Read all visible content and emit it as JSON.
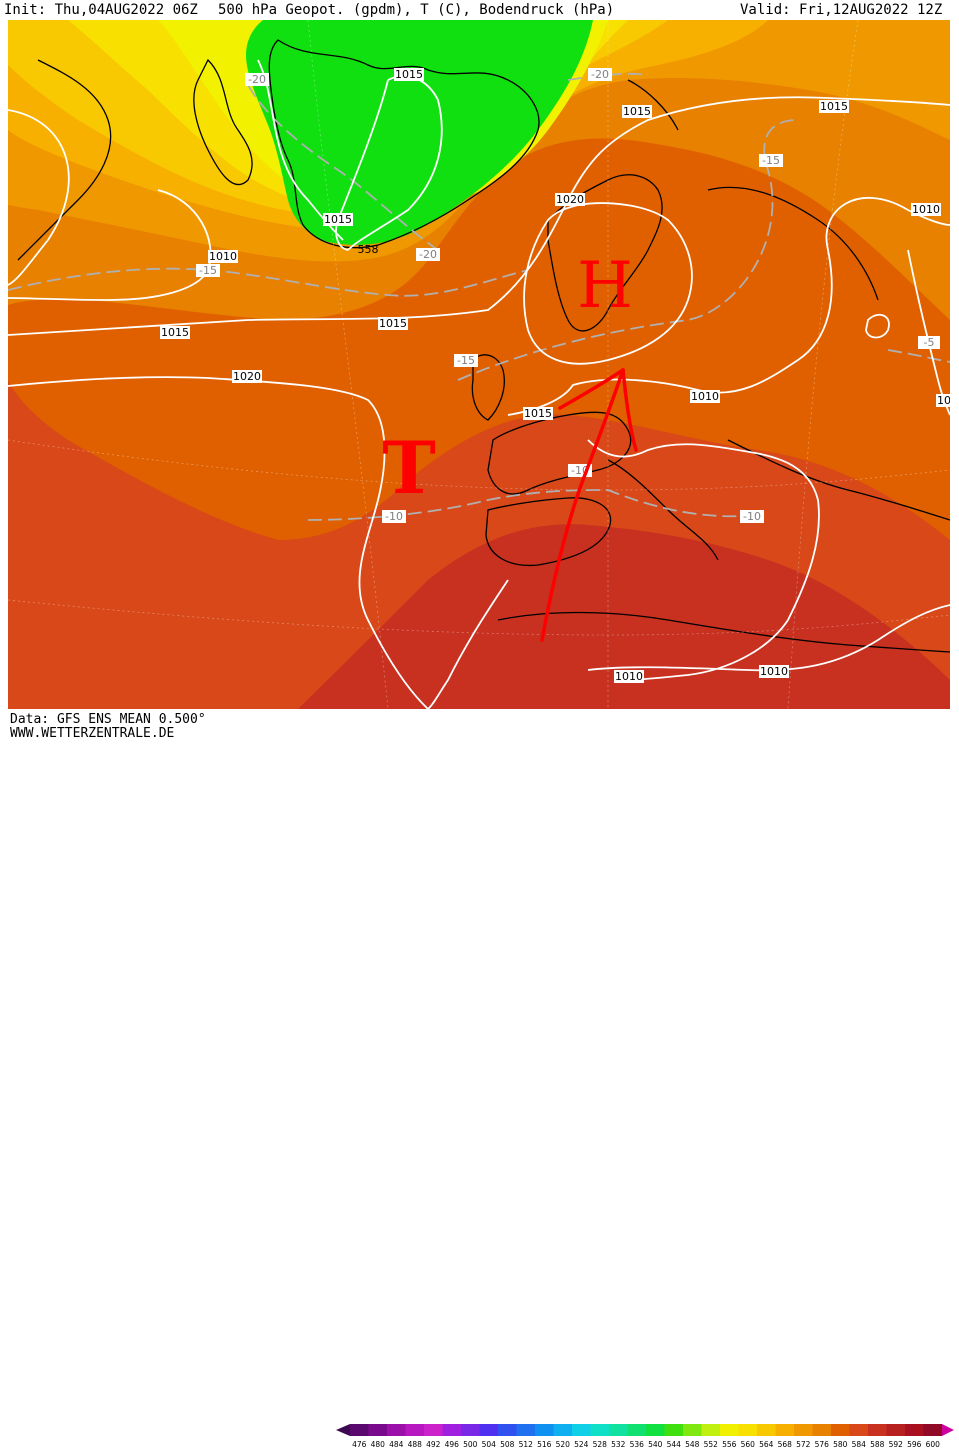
{
  "header": {
    "init": "Init: Thu,04AUG2022 06Z",
    "title": "500 hPa Geopot. (gpdm), T (C), Bodendruck (hPa)",
    "valid": "Valid: Fri,12AUG2022 12Z"
  },
  "footer": {
    "data_source": "Data: GFS ENS MEAN 0.500°",
    "website": "WWW.WETTERZENTRALE.DE"
  },
  "pressure_labels": [
    "1015",
    "1015",
    "1015",
    "1015",
    "1020",
    "1010",
    "1015",
    "1020",
    "1015",
    "1015",
    "1010",
    "1010",
    "1010",
    "10",
    "1010"
  ],
  "temp_labels": [
    "-20",
    "-20",
    "-20",
    "-15",
    "-15",
    "-15",
    "-10",
    "-10",
    "-10",
    "-5"
  ],
  "geopot_label": "558",
  "symbols": {
    "high": "H",
    "low": "T"
  },
  "legend_values": [
    "476",
    "480",
    "484",
    "488",
    "492",
    "496",
    "500",
    "504",
    "508",
    "512",
    "516",
    "520",
    "524",
    "528",
    "532",
    "536",
    "540",
    "544",
    "548",
    "552",
    "556",
    "560",
    "564",
    "568",
    "572",
    "576",
    "580",
    "584",
    "588",
    "592",
    "596",
    "600"
  ],
  "legend_colors": [
    "#5a0a6e",
    "#7a0a8c",
    "#9a10a8",
    "#b818c0",
    "#cc22cc",
    "#a020e0",
    "#7a28e8",
    "#5030f0",
    "#3050f0",
    "#2070f0",
    "#1090f0",
    "#10b0f0",
    "#10d0e8",
    "#10e0c8",
    "#10e0a0",
    "#10e070",
    "#10e040",
    "#40e010",
    "#80e810",
    "#c0f010",
    "#f0f000",
    "#f8e000",
    "#f8c800",
    "#f8b000",
    "#f09800",
    "#e88000",
    "#e06000",
    "#d84818",
    "#c83020",
    "#b82020",
    "#a81020",
    "#900a28"
  ],
  "colors": {
    "green_zone": "#10e010",
    "yellow": "#f2f200",
    "arrow": "#ff0000",
    "isobar": "#ffffff"
  }
}
